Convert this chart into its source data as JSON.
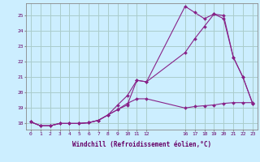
{
  "background_color": "#cceeff",
  "grid_color": "#aacccc",
  "line_color": "#882288",
  "title": "Windchill (Refroidissement éolien,°C)",
  "ylim": [
    17.6,
    25.8
  ],
  "yticks": [
    18,
    19,
    20,
    21,
    22,
    23,
    24,
    25
  ],
  "xlim": [
    -0.5,
    23.5
  ],
  "xtick_positions": [
    0,
    1,
    2,
    3,
    4,
    5,
    6,
    7,
    8,
    9,
    10,
    11,
    12,
    16,
    17,
    18,
    19,
    20,
    21,
    22,
    23
  ],
  "xtick_labels": [
    "0",
    "1",
    "2",
    "3",
    "4",
    "5",
    "6",
    "7",
    "8",
    "9",
    "10",
    "11",
    "12",
    "16",
    "17",
    "18",
    "19",
    "20",
    "21",
    "22",
    "23"
  ],
  "line1_x": [
    0,
    1,
    2,
    3,
    4,
    5,
    6,
    7,
    8,
    9,
    10,
    11,
    12,
    16,
    17,
    18,
    19,
    20,
    21,
    22,
    23
  ],
  "line1_y": [
    18.1,
    17.85,
    17.85,
    18.0,
    18.0,
    18.0,
    18.05,
    18.2,
    18.55,
    19.2,
    19.8,
    20.8,
    20.7,
    22.6,
    23.5,
    24.3,
    25.1,
    24.8,
    22.3,
    21.0,
    19.3
  ],
  "line2_x": [
    0,
    1,
    2,
    3,
    4,
    5,
    6,
    7,
    8,
    9,
    10,
    11,
    12,
    16,
    17,
    18,
    19,
    20,
    21,
    22,
    23
  ],
  "line2_y": [
    18.1,
    17.85,
    17.85,
    18.0,
    18.0,
    18.0,
    18.05,
    18.2,
    18.55,
    18.9,
    19.2,
    20.8,
    20.7,
    25.6,
    25.2,
    24.8,
    25.1,
    25.0,
    22.3,
    21.0,
    19.3
  ],
  "line3_x": [
    0,
    1,
    2,
    3,
    4,
    5,
    6,
    7,
    8,
    9,
    10,
    11,
    12,
    16,
    17,
    18,
    19,
    20,
    21,
    22,
    23
  ],
  "line3_y": [
    18.1,
    17.85,
    17.85,
    18.0,
    18.0,
    18.0,
    18.05,
    18.2,
    18.55,
    18.9,
    19.3,
    19.6,
    19.6,
    19.0,
    19.1,
    19.15,
    19.2,
    19.3,
    19.35,
    19.35,
    19.35
  ]
}
